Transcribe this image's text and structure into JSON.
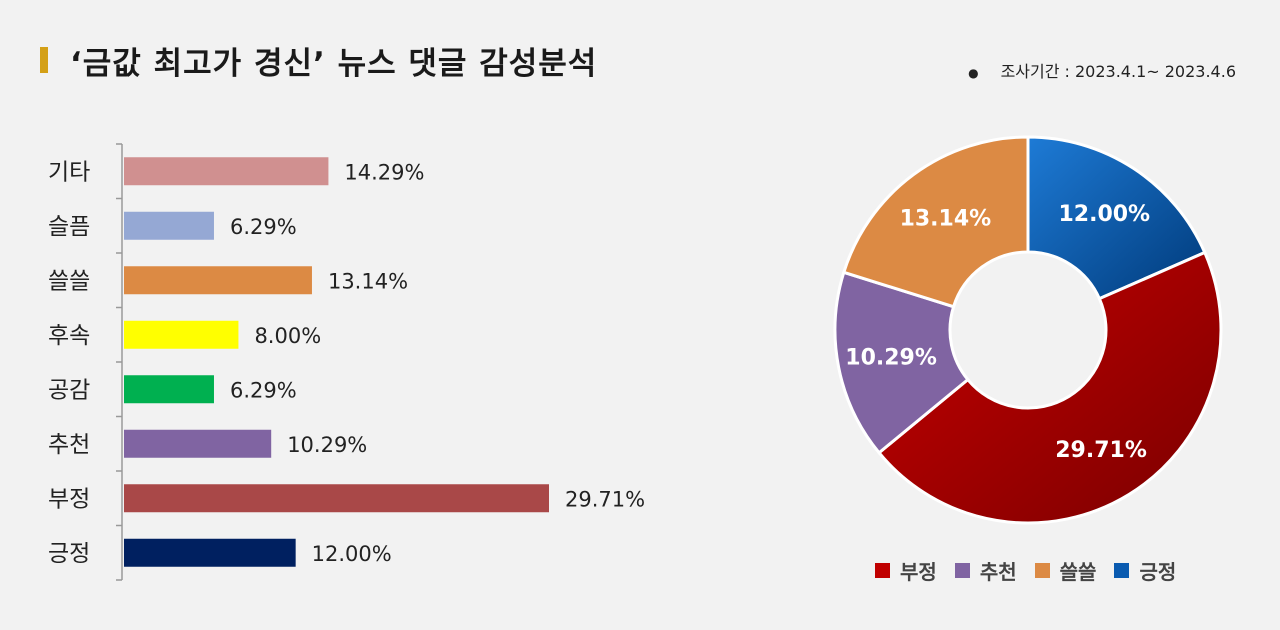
{
  "header": {
    "title": "‘금값 최고가 경신’ 뉴스 댓글 감성분석",
    "period": "조사기간 : 2023.4.1~ 2023.4.6",
    "accent_color": "#d4a017"
  },
  "chart_data": [
    {
      "type": "bar",
      "orientation": "horizontal",
      "categories": [
        "기타",
        "슬픔",
        "쓸쓸",
        "후속",
        "공감",
        "추천",
        "부정",
        "긍정"
      ],
      "values": [
        14.29,
        6.29,
        13.14,
        8.0,
        6.29,
        10.29,
        29.71,
        12.0
      ],
      "value_labels": [
        "14.29%",
        "6.29%",
        "13.14%",
        "8.00%",
        "6.29%",
        "10.29%",
        "29.71%",
        "12.00%"
      ],
      "colors": [
        "#d09090",
        "#95a8d4",
        "#dc8a44",
        "#ffff00",
        "#00b050",
        "#8064a2",
        "#a94848",
        "#002060"
      ],
      "xlim": [
        0,
        35
      ]
    },
    {
      "type": "pie",
      "variant": "donut",
      "labels": [
        "긍정",
        "부정",
        "추천",
        "쓸쓸"
      ],
      "values": [
        12.0,
        29.71,
        10.29,
        13.14
      ],
      "value_labels": [
        "12.00%",
        "29.71%",
        "10.29%",
        "13.14%"
      ],
      "colors": [
        "#0a5bb0",
        "#b00000",
        "#8064a2",
        "#dc8a44"
      ],
      "legend": [
        "부정",
        "추천",
        "쓸쓸",
        "긍정"
      ],
      "legend_colors": [
        "#c00000",
        "#8064a2",
        "#dc8a44",
        "#0a5bb0"
      ],
      "legend_placement": "bottom"
    }
  ]
}
